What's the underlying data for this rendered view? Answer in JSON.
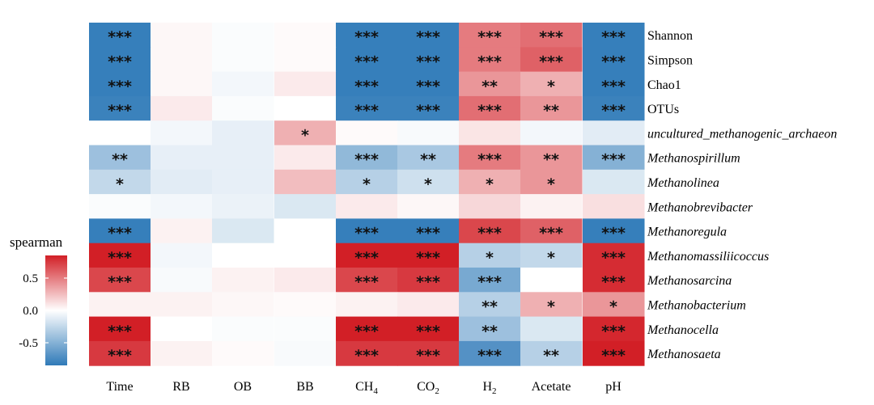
{
  "chart_data": {
    "type": "heatmap",
    "title": "",
    "legend": {
      "title": "spearman",
      "tick_labels": [
        "0.5",
        "0.0",
        "-0.5"
      ],
      "tick_values": [
        0.5,
        0.0,
        -0.5
      ],
      "range": [
        -0.85,
        0.85
      ],
      "placement": "left",
      "colors": {
        "negative": "#2F7AB8",
        "zero": "#FFFFFF",
        "positive": "#D21F26"
      }
    },
    "x_categories": [
      {
        "label": "Time"
      },
      {
        "label": "RB"
      },
      {
        "label": "OB"
      },
      {
        "label": "BB"
      },
      {
        "label": "CH",
        "sub": "4"
      },
      {
        "label": "CO",
        "sub": "2"
      },
      {
        "label": "H",
        "sub": "2"
      },
      {
        "label": "Acetate"
      },
      {
        "label": "pH"
      }
    ],
    "y_categories": [
      {
        "label": "Shannon",
        "italic": false
      },
      {
        "label": "Simpson",
        "italic": false
      },
      {
        "label": "Chao1",
        "italic": false
      },
      {
        "label": "OTUs",
        "italic": false
      },
      {
        "label": "uncultured_methanogenic_archaeon",
        "italic": true
      },
      {
        "label": "Methanospirillum",
        "italic": true
      },
      {
        "label": "Methanolinea",
        "italic": true
      },
      {
        "label": "Methanobrevibacter",
        "italic": true
      },
      {
        "label": "Methanoregula",
        "italic": true
      },
      {
        "label": "Methanomassiliicoccus",
        "italic": true
      },
      {
        "label": "Methanosarcina",
        "italic": true
      },
      {
        "label": "Methanobacterium",
        "italic": true
      },
      {
        "label": "Methanocella",
        "italic": true
      },
      {
        "label": "Methanosaeta",
        "italic": true
      }
    ],
    "values": [
      [
        -0.82,
        0.03,
        -0.02,
        0.02,
        -0.82,
        -0.82,
        0.5,
        0.55,
        -0.82
      ],
      [
        -0.82,
        0.03,
        -0.02,
        0.02,
        -0.82,
        -0.82,
        0.5,
        0.6,
        -0.82
      ],
      [
        -0.82,
        0.03,
        -0.05,
        0.08,
        -0.82,
        -0.82,
        0.4,
        0.3,
        -0.82
      ],
      [
        -0.8,
        0.08,
        -0.02,
        0.0,
        -0.8,
        -0.8,
        0.55,
        0.4,
        -0.8
      ],
      [
        0.0,
        -0.05,
        -0.1,
        0.3,
        0.02,
        -0.03,
        0.1,
        -0.05,
        -0.12
      ],
      [
        -0.4,
        -0.1,
        -0.1,
        0.08,
        -0.45,
        -0.35,
        0.5,
        0.4,
        -0.5
      ],
      [
        -0.25,
        -0.12,
        -0.1,
        0.25,
        -0.3,
        -0.2,
        0.3,
        0.4,
        -0.15
      ],
      [
        -0.02,
        -0.05,
        -0.08,
        -0.15,
        0.08,
        0.03,
        0.15,
        0.05,
        0.12
      ],
      [
        -0.82,
        0.05,
        -0.15,
        0.0,
        -0.82,
        -0.82,
        0.7,
        0.6,
        -0.82
      ],
      [
        0.85,
        -0.05,
        0.0,
        0.0,
        0.85,
        0.85,
        -0.3,
        -0.25,
        0.8
      ],
      [
        0.7,
        -0.03,
        0.05,
        0.08,
        0.7,
        0.75,
        -0.55,
        0.0,
        0.8
      ],
      [
        0.05,
        0.05,
        0.03,
        0.02,
        0.05,
        0.08,
        -0.3,
        0.3,
        0.4
      ],
      [
        0.85,
        0.0,
        -0.02,
        -0.02,
        0.85,
        0.85,
        -0.4,
        -0.15,
        0.82
      ],
      [
        0.75,
        0.05,
        0.02,
        -0.03,
        0.75,
        0.75,
        -0.7,
        -0.3,
        0.85
      ]
    ],
    "significance": [
      [
        "***",
        "",
        "",
        "",
        "***",
        "***",
        "***",
        "***",
        "***"
      ],
      [
        "***",
        "",
        "",
        "",
        "***",
        "***",
        "***",
        "***",
        "***"
      ],
      [
        "***",
        "",
        "",
        "",
        "***",
        "***",
        "**",
        "*",
        "***"
      ],
      [
        "***",
        "",
        "",
        "",
        "***",
        "***",
        "***",
        "**",
        "***"
      ],
      [
        "",
        "",
        "",
        "*",
        "",
        "",
        "",
        "",
        ""
      ],
      [
        "**",
        "",
        "",
        "",
        "***",
        "**",
        "***",
        "**",
        "***"
      ],
      [
        "*",
        "",
        "",
        "",
        "*",
        "*",
        "*",
        "*",
        ""
      ],
      [
        "",
        "",
        "",
        "",
        "",
        "",
        "",
        "",
        ""
      ],
      [
        "***",
        "",
        "",
        "",
        "***",
        "***",
        "***",
        "***",
        "***"
      ],
      [
        "***",
        "",
        "",
        "",
        "***",
        "***",
        "*",
        "*",
        "***"
      ],
      [
        "***",
        "",
        "",
        "",
        "***",
        "***",
        "***",
        "",
        "***"
      ],
      [
        "",
        "",
        "",
        "",
        "",
        "",
        "**",
        "*",
        "*"
      ],
      [
        "***",
        "",
        "",
        "",
        "***",
        "***",
        "**",
        "",
        "***"
      ],
      [
        "***",
        "",
        "",
        "",
        "***",
        "***",
        "***",
        "**",
        "***"
      ]
    ]
  }
}
